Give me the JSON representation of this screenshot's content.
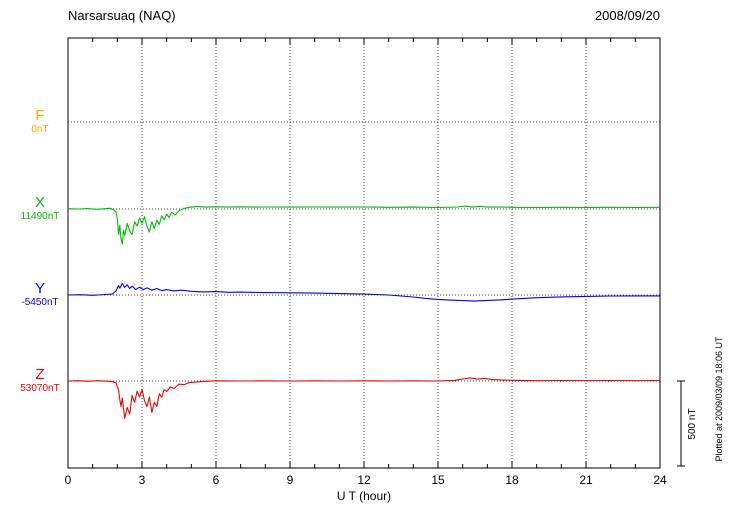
{
  "header": {
    "title": "Narsarsuaq (NAQ)",
    "date": "2008/09/20"
  },
  "footer": {
    "plotted_at": "Plotted at 2009/03/09 18:06 UT"
  },
  "chart_data": {
    "type": "line",
    "title": "Narsarsuaq (NAQ)",
    "date": "2008/09/20",
    "xlabel": "U T (hour)",
    "x_range": [
      0,
      24
    ],
    "x_major_ticks": [
      0,
      3,
      6,
      9,
      12,
      15,
      18,
      21,
      24
    ],
    "x_minor_tick_step": 1,
    "grid": "dotted",
    "scale_bar_nT": 500,
    "scale_bar_label": "500 nT",
    "series": [
      {
        "name": "F",
        "baseline_label": "0nT",
        "baseline_nT": 0,
        "color": "#ffa500",
        "points": []
      },
      {
        "name": "X",
        "baseline_label": "11490nT",
        "baseline_nT": 11490,
        "color": "#00bb00",
        "points": [
          [
            0,
            2
          ],
          [
            0.4,
            0
          ],
          [
            0.8,
            3
          ],
          [
            1.2,
            -2
          ],
          [
            1.5,
            2
          ],
          [
            1.7,
            4
          ],
          [
            1.85,
            -4
          ],
          [
            1.95,
            -20
          ],
          [
            2.0,
            -60
          ],
          [
            2.05,
            -150
          ],
          [
            2.1,
            -95
          ],
          [
            2.15,
            -175
          ],
          [
            2.2,
            -205
          ],
          [
            2.25,
            -125
          ],
          [
            2.3,
            -155
          ],
          [
            2.4,
            -85
          ],
          [
            2.5,
            -130
          ],
          [
            2.6,
            -150
          ],
          [
            2.7,
            -75
          ],
          [
            2.8,
            -100
          ],
          [
            2.9,
            -55
          ],
          [
            3.0,
            -85
          ],
          [
            3.1,
            -45
          ],
          [
            3.2,
            -100
          ],
          [
            3.3,
            -135
          ],
          [
            3.4,
            -75
          ],
          [
            3.5,
            -115
          ],
          [
            3.6,
            -65
          ],
          [
            3.7,
            -90
          ],
          [
            3.8,
            -40
          ],
          [
            3.9,
            -65
          ],
          [
            4.0,
            -30
          ],
          [
            4.1,
            -50
          ],
          [
            4.2,
            -20
          ],
          [
            4.35,
            -35
          ],
          [
            4.5,
            -10
          ],
          [
            4.7,
            3
          ],
          [
            4.9,
            10
          ],
          [
            5.2,
            14
          ],
          [
            5.6,
            11
          ],
          [
            6,
            13
          ],
          [
            6.5,
            11
          ],
          [
            7,
            13
          ],
          [
            7.5,
            11
          ],
          [
            8,
            12
          ],
          [
            9,
            11
          ],
          [
            10,
            12
          ],
          [
            11,
            11
          ],
          [
            12,
            12
          ],
          [
            13,
            10
          ],
          [
            14,
            11
          ],
          [
            15,
            9
          ],
          [
            15.8,
            12
          ],
          [
            16.1,
            17
          ],
          [
            16.4,
            11
          ],
          [
            16.7,
            16
          ],
          [
            17,
            11
          ],
          [
            17.5,
            12
          ],
          [
            18,
            10
          ],
          [
            19,
            9
          ],
          [
            20,
            10
          ],
          [
            21,
            9
          ],
          [
            22,
            10
          ],
          [
            23,
            9
          ],
          [
            24,
            10
          ]
        ]
      },
      {
        "name": "Y",
        "baseline_label": "-5450nT",
        "baseline_nT": -5450,
        "color": "#0000ee",
        "points": [
          [
            0,
            0
          ],
          [
            0.5,
            2
          ],
          [
            1.0,
            -2
          ],
          [
            1.5,
            3
          ],
          [
            1.8,
            6
          ],
          [
            1.95,
            25
          ],
          [
            2.05,
            55
          ],
          [
            2.1,
            40
          ],
          [
            2.2,
            68
          ],
          [
            2.3,
            45
          ],
          [
            2.4,
            60
          ],
          [
            2.5,
            38
          ],
          [
            2.6,
            52
          ],
          [
            2.75,
            32
          ],
          [
            2.9,
            46
          ],
          [
            3.05,
            32
          ],
          [
            3.2,
            42
          ],
          [
            3.4,
            28
          ],
          [
            3.6,
            38
          ],
          [
            3.8,
            26
          ],
          [
            4.0,
            32
          ],
          [
            4.3,
            24
          ],
          [
            4.6,
            28
          ],
          [
            5.0,
            22
          ],
          [
            5.5,
            18
          ],
          [
            6,
            20
          ],
          [
            6.5,
            16
          ],
          [
            7,
            17
          ],
          [
            8,
            14
          ],
          [
            9,
            13
          ],
          [
            10,
            11
          ],
          [
            11,
            8
          ],
          [
            12,
            5
          ],
          [
            13,
            0
          ],
          [
            13.5,
            -6
          ],
          [
            14,
            -12
          ],
          [
            14.5,
            -20
          ],
          [
            15,
            -26
          ],
          [
            15.5,
            -30
          ],
          [
            16,
            -33
          ],
          [
            16.5,
            -36
          ],
          [
            17,
            -32
          ],
          [
            17.5,
            -29
          ],
          [
            18,
            -24
          ],
          [
            18.5,
            -20
          ],
          [
            19,
            -16
          ],
          [
            20,
            -11
          ],
          [
            21,
            -8
          ],
          [
            22,
            -6
          ],
          [
            23,
            -5
          ],
          [
            24,
            -5
          ]
        ]
      },
      {
        "name": "Z",
        "baseline_label": "53070nT",
        "baseline_nT": 53070,
        "color": "#ee0000",
        "points": [
          [
            0,
            0
          ],
          [
            0.4,
            2
          ],
          [
            0.8,
            -2
          ],
          [
            1.2,
            2
          ],
          [
            1.6,
            -1
          ],
          [
            1.8,
            -4
          ],
          [
            1.95,
            -12
          ],
          [
            2.05,
            -55
          ],
          [
            2.1,
            -110
          ],
          [
            2.15,
            -150
          ],
          [
            2.2,
            -100
          ],
          [
            2.3,
            -220
          ],
          [
            2.4,
            -155
          ],
          [
            2.5,
            -195
          ],
          [
            2.6,
            -85
          ],
          [
            2.7,
            -125
          ],
          [
            2.8,
            -60
          ],
          [
            2.9,
            -95
          ],
          [
            3.0,
            -50
          ],
          [
            3.1,
            -115
          ],
          [
            3.2,
            -150
          ],
          [
            3.3,
            -95
          ],
          [
            3.4,
            -185
          ],
          [
            3.5,
            -125
          ],
          [
            3.6,
            -150
          ],
          [
            3.7,
            -75
          ],
          [
            3.8,
            -95
          ],
          [
            3.9,
            -50
          ],
          [
            4.0,
            -62
          ],
          [
            4.15,
            -35
          ],
          [
            4.3,
            -45
          ],
          [
            4.5,
            -18
          ],
          [
            4.7,
            -22
          ],
          [
            4.9,
            -10
          ],
          [
            5.2,
            -6
          ],
          [
            5.6,
            -2
          ],
          [
            6,
            1
          ],
          [
            7,
            0
          ],
          [
            8,
            1
          ],
          [
            9,
            0
          ],
          [
            10,
            1
          ],
          [
            11,
            0
          ],
          [
            12,
            1
          ],
          [
            13,
            0
          ],
          [
            14,
            1
          ],
          [
            15,
            0
          ],
          [
            15.7,
            4
          ],
          [
            16.0,
            12
          ],
          [
            16.3,
            18
          ],
          [
            16.6,
            11
          ],
          [
            16.9,
            15
          ],
          [
            17.2,
            8
          ],
          [
            17.6,
            6
          ],
          [
            18,
            4
          ],
          [
            19,
            2
          ],
          [
            20,
            3
          ],
          [
            21,
            2
          ],
          [
            22,
            3
          ],
          [
            23,
            2
          ],
          [
            24,
            3
          ]
        ]
      }
    ]
  }
}
